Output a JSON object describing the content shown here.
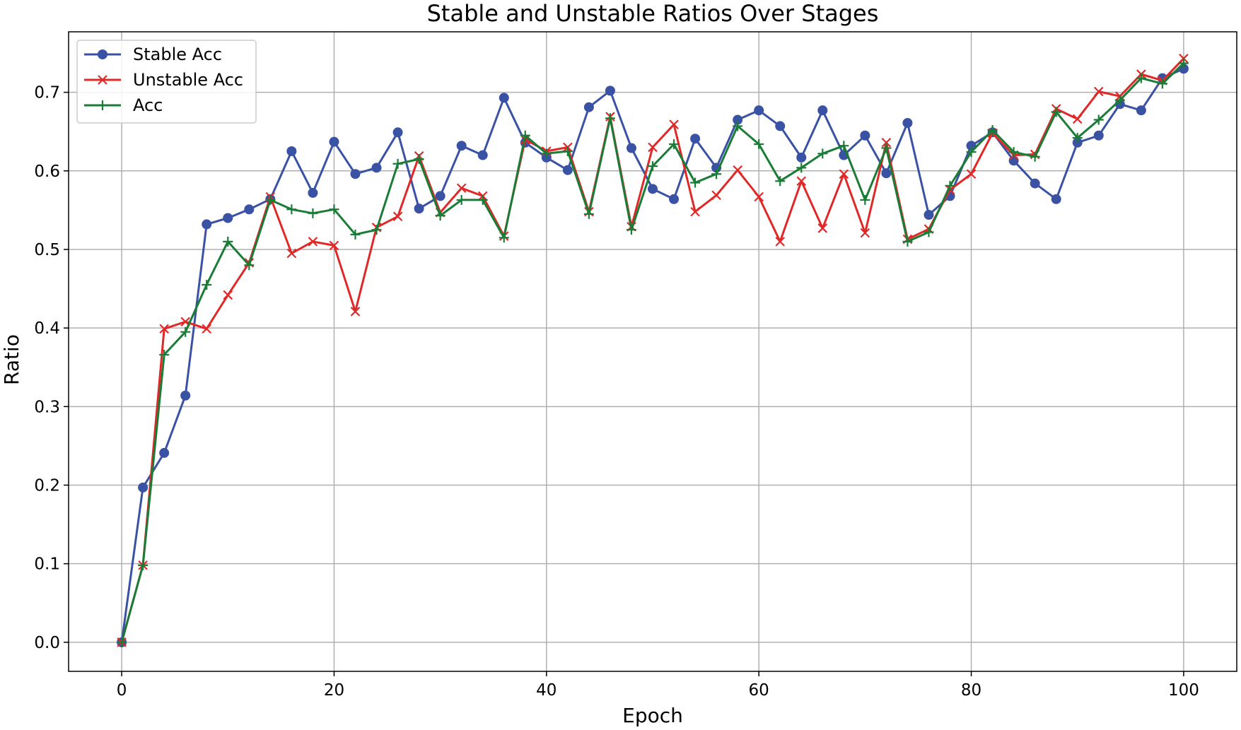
{
  "chart_data": {
    "type": "line",
    "title": "Stable and Unstable Ratios Over Stages",
    "xlabel": "Epoch",
    "ylabel": "Ratio",
    "xlim": [
      -5,
      105
    ],
    "ylim": [
      -0.037,
      0.777
    ],
    "xticks": [
      0,
      20,
      40,
      60,
      80,
      100
    ],
    "yticks": [
      0.0,
      0.1,
      0.2,
      0.3,
      0.4,
      0.5,
      0.6,
      0.7
    ],
    "xtick_labels": [
      "0",
      "20",
      "40",
      "60",
      "80",
      "100"
    ],
    "ytick_labels": [
      "0.0",
      "0.1",
      "0.2",
      "0.3",
      "0.4",
      "0.5",
      "0.6",
      "0.7"
    ],
    "grid": true,
    "legend_position": "top-left",
    "x": [
      0,
      2,
      4,
      6,
      8,
      10,
      12,
      14,
      16,
      18,
      20,
      22,
      24,
      26,
      28,
      30,
      32,
      34,
      36,
      38,
      40,
      42,
      44,
      46,
      48,
      50,
      52,
      54,
      56,
      58,
      60,
      62,
      64,
      66,
      68,
      70,
      72,
      74,
      76,
      78,
      80,
      82,
      84,
      86,
      88,
      90,
      92,
      94,
      96,
      98,
      100
    ],
    "series": [
      {
        "name": "Stable Acc",
        "color": "#3a52a4",
        "marker": "circle",
        "values": [
          0.0,
          0.197,
          0.241,
          0.314,
          0.532,
          0.54,
          0.551,
          0.564,
          0.625,
          0.572,
          0.637,
          0.596,
          0.604,
          0.649,
          0.552,
          0.568,
          0.632,
          0.62,
          0.693,
          0.636,
          0.617,
          0.601,
          0.681,
          0.702,
          0.629,
          0.577,
          0.564,
          0.641,
          0.604,
          0.665,
          0.677,
          0.657,
          0.617,
          0.677,
          0.62,
          0.645,
          0.597,
          0.661,
          0.544,
          0.568,
          0.632,
          0.649,
          0.613,
          0.584,
          0.564,
          0.636,
          0.645,
          0.685,
          0.677,
          0.718,
          0.73
        ]
      },
      {
        "name": "Unstable Acc",
        "color": "#e02828",
        "marker": "x",
        "values": [
          0.0,
          0.098,
          0.399,
          0.408,
          0.399,
          0.442,
          0.483,
          0.567,
          0.495,
          0.51,
          0.505,
          0.421,
          0.528,
          0.542,
          0.619,
          0.547,
          0.578,
          0.568,
          0.517,
          0.64,
          0.625,
          0.63,
          0.548,
          0.669,
          0.529,
          0.63,
          0.659,
          0.548,
          0.569,
          0.601,
          0.567,
          0.51,
          0.587,
          0.527,
          0.596,
          0.521,
          0.636,
          0.513,
          0.526,
          0.576,
          0.596,
          0.648,
          0.62,
          0.621,
          0.679,
          0.666,
          0.701,
          0.695,
          0.723,
          0.715,
          0.743
        ]
      },
      {
        "name": "Acc",
        "color": "#1a7c36",
        "marker": "plus",
        "values": [
          0.0,
          0.098,
          0.366,
          0.395,
          0.455,
          0.51,
          0.48,
          0.563,
          0.551,
          0.546,
          0.551,
          0.519,
          0.525,
          0.609,
          0.615,
          0.543,
          0.563,
          0.563,
          0.515,
          0.645,
          0.622,
          0.625,
          0.545,
          0.667,
          0.525,
          0.606,
          0.634,
          0.585,
          0.596,
          0.657,
          0.634,
          0.587,
          0.604,
          0.622,
          0.632,
          0.563,
          0.629,
          0.51,
          0.522,
          0.581,
          0.624,
          0.652,
          0.624,
          0.618,
          0.675,
          0.642,
          0.665,
          0.69,
          0.718,
          0.711,
          0.737
        ]
      }
    ]
  }
}
